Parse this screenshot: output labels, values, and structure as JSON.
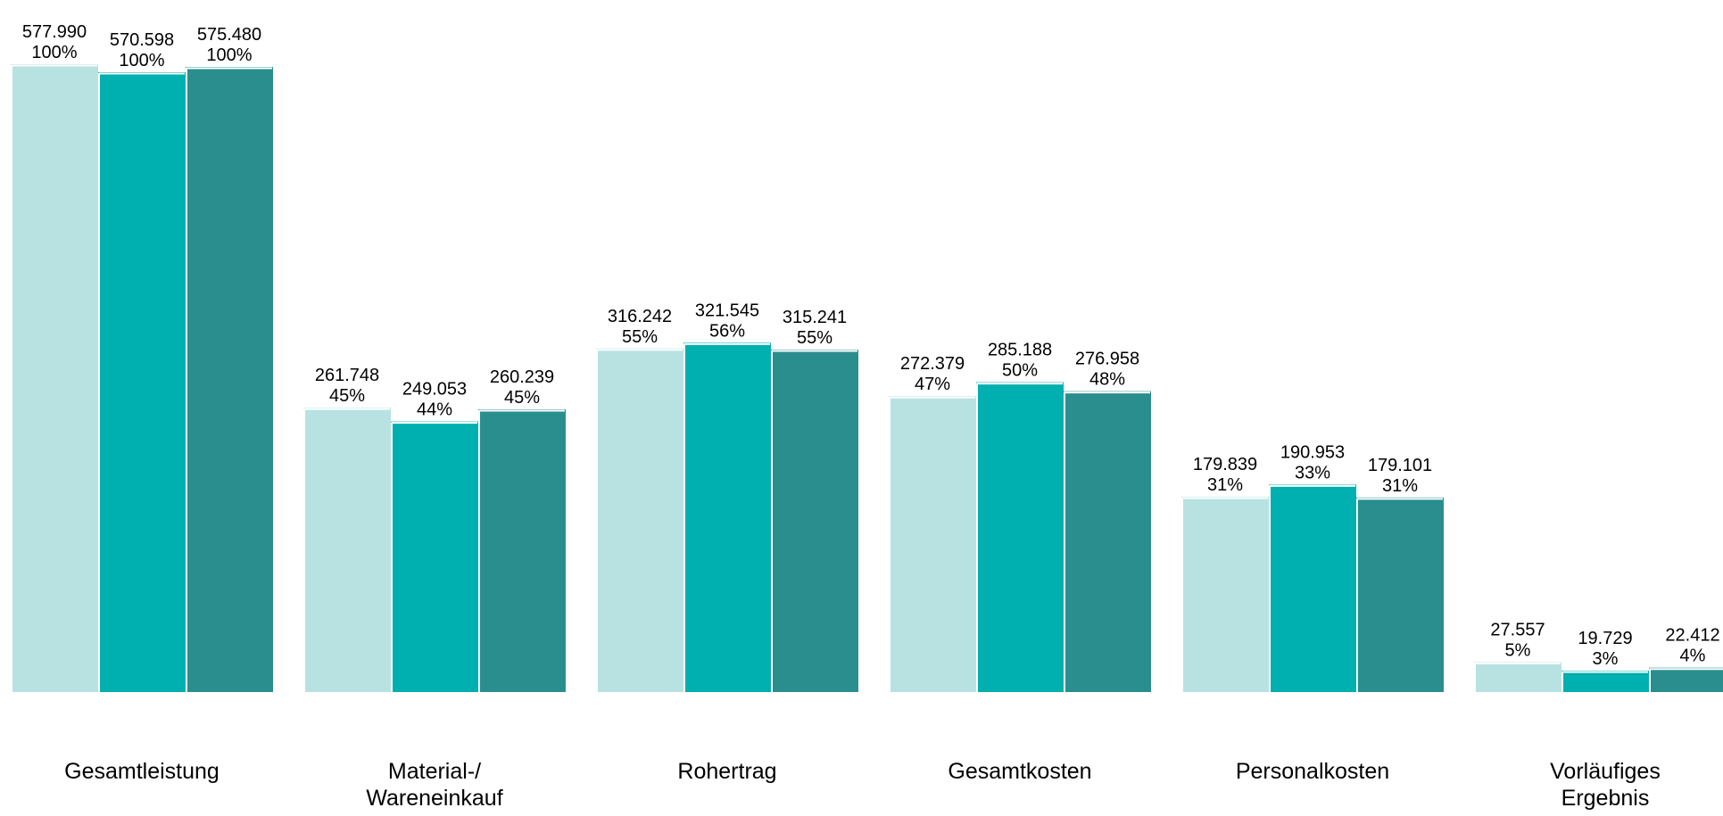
{
  "chart_data": {
    "type": "bar",
    "title": "",
    "xlabel": "",
    "ylabel": "",
    "ylim": [
      0,
      585000
    ],
    "grid": false,
    "legend": "none",
    "categories": [
      [
        "Gesamtleistung"
      ],
      [
        "Material-/",
        "Wareneinkauf"
      ],
      [
        "Rohertrag"
      ],
      [
        "Gesamtkosten"
      ],
      [
        "Personalkosten"
      ],
      [
        "Vorläufiges",
        "Ergebnis"
      ]
    ],
    "series": [
      {
        "color": "#b8e2e2",
        "values": [
          577990,
          261748,
          316242,
          272379,
          179839,
          27557
        ],
        "value_labels": [
          "577.990",
          "261.748",
          "316.242",
          "272.379",
          "179.839",
          "27.557"
        ],
        "percent_labels": [
          "100%",
          "45%",
          "55%",
          "47%",
          "31%",
          "5%"
        ]
      },
      {
        "color": "#00afaf",
        "values": [
          570598,
          249053,
          321545,
          285188,
          190953,
          19729
        ],
        "value_labels": [
          "570.598",
          "249.053",
          "321.545",
          "285.188",
          "190.953",
          "19.729"
        ],
        "percent_labels": [
          "100%",
          "44%",
          "56%",
          "50%",
          "33%",
          "3%"
        ]
      },
      {
        "color": "#2b8e8e",
        "values": [
          575480,
          260239,
          315241,
          276958,
          179101,
          22412
        ],
        "value_labels": [
          "575.480",
          "260.239",
          "315.241",
          "276.958",
          "179.101",
          "22.412"
        ],
        "percent_labels": [
          "100%",
          "45%",
          "55%",
          "48%",
          "31%",
          "4%"
        ]
      }
    ]
  }
}
